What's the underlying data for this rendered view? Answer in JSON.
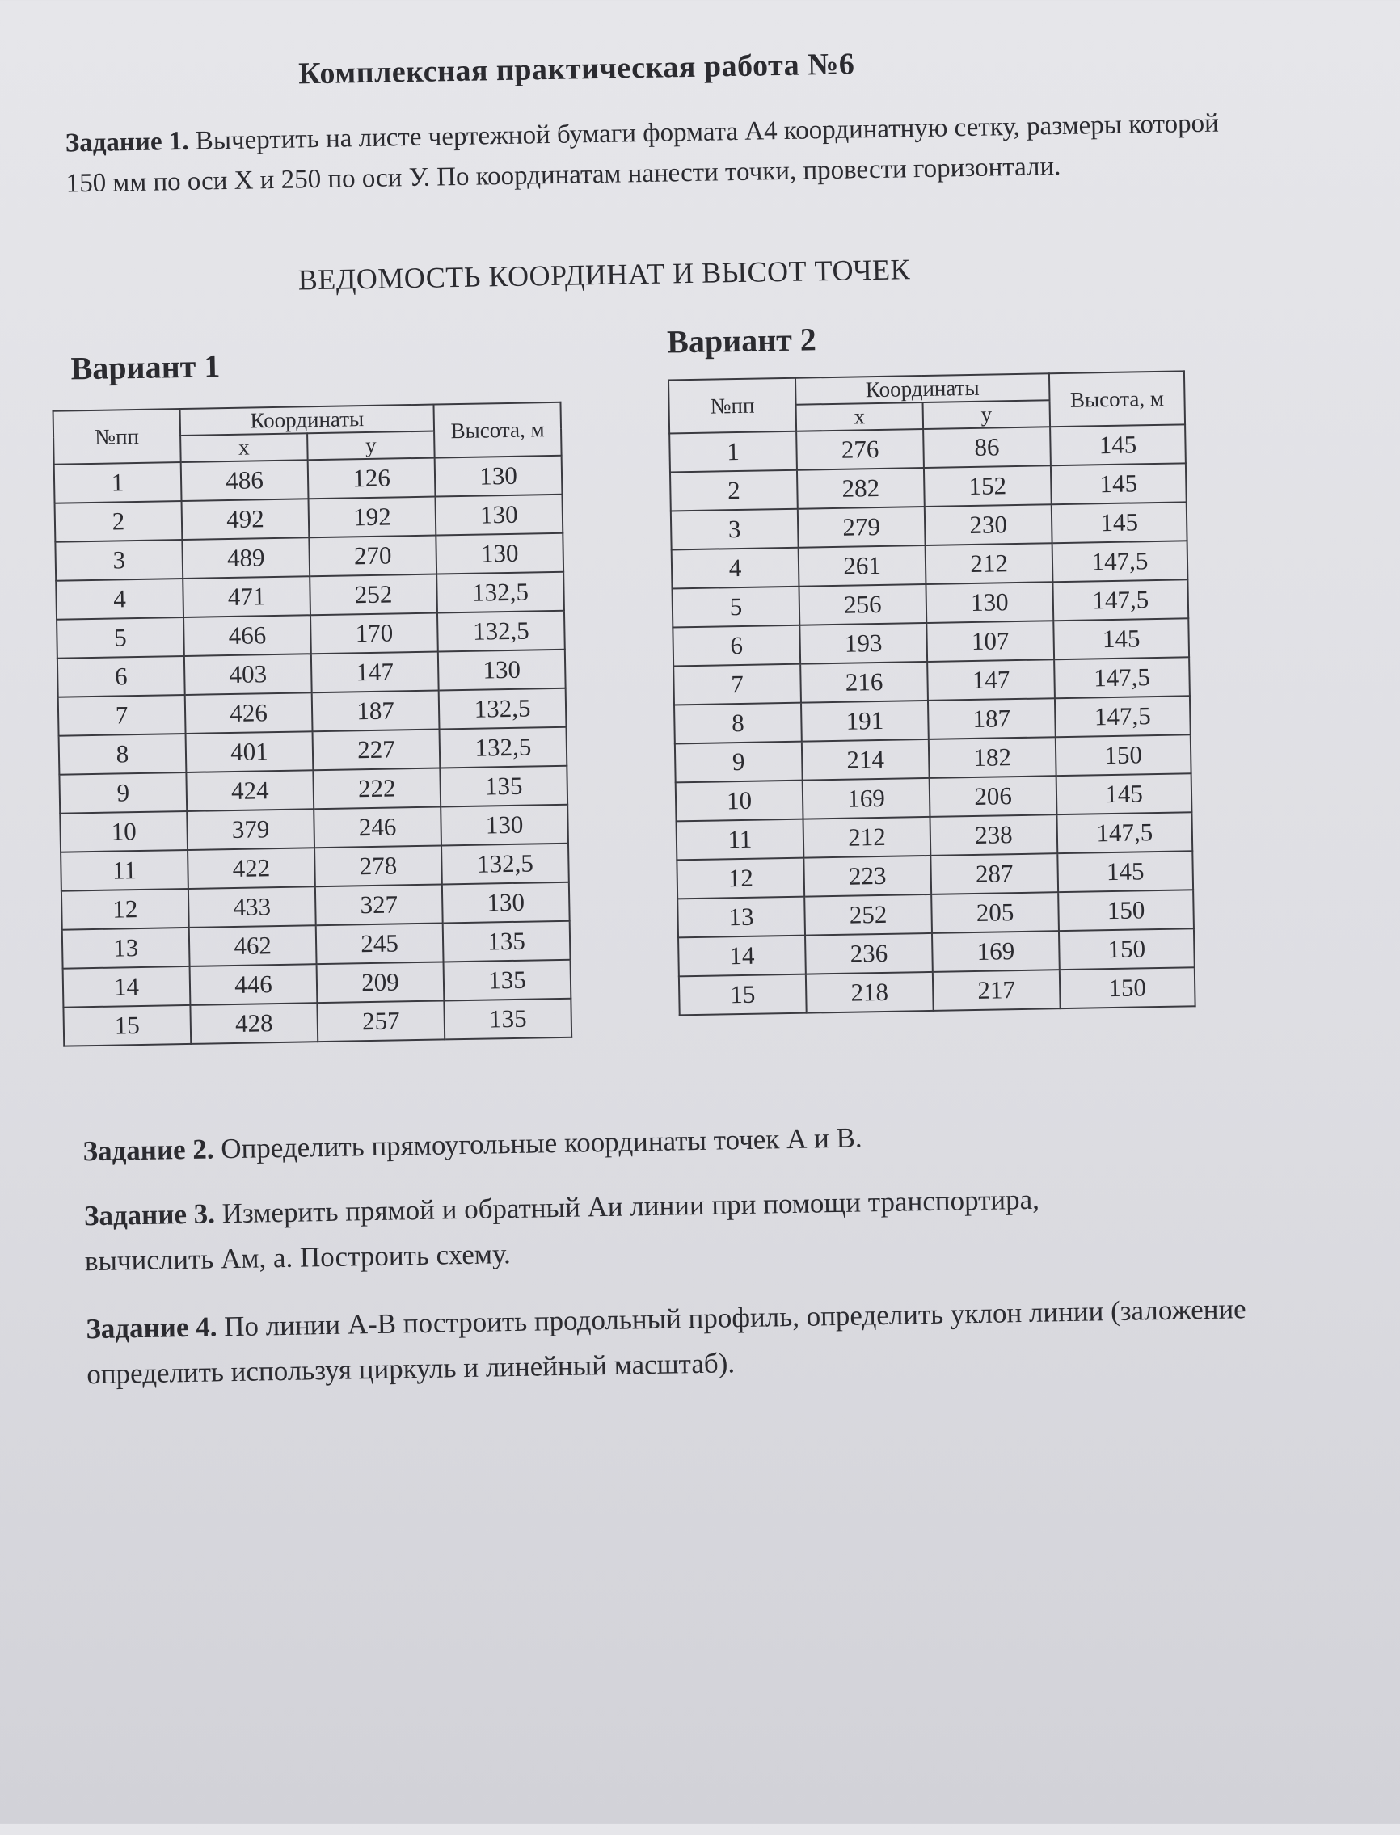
{
  "title": "Комплексная практическая работа №6",
  "task1": {
    "label": "Задание 1.",
    "text": "Вычертить на листе чертежной бумаги формата А4 координатную сетку, размеры которой 150 мм по оси X и 250 по оси У. По координатам нанести точки, провести горизонтали."
  },
  "heading": "ВЕДОМОСТЬ КООРДИНАТ И ВЫСОТ ТОЧЕК",
  "headers": {
    "num": "№пп",
    "coords": "Координаты",
    "x": "x",
    "y": "y",
    "height": "Высота, м"
  },
  "variant1": {
    "title": "Вариант 1",
    "rows": [
      [
        "1",
        "486",
        "126",
        "130"
      ],
      [
        "2",
        "492",
        "192",
        "130"
      ],
      [
        "3",
        "489",
        "270",
        "130"
      ],
      [
        "4",
        "471",
        "252",
        "132,5"
      ],
      [
        "5",
        "466",
        "170",
        "132,5"
      ],
      [
        "6",
        "403",
        "147",
        "130"
      ],
      [
        "7",
        "426",
        "187",
        "132,5"
      ],
      [
        "8",
        "401",
        "227",
        "132,5"
      ],
      [
        "9",
        "424",
        "222",
        "135"
      ],
      [
        "10",
        "379",
        "246",
        "130"
      ],
      [
        "11",
        "422",
        "278",
        "132,5"
      ],
      [
        "12",
        "433",
        "327",
        "130"
      ],
      [
        "13",
        "462",
        "245",
        "135"
      ],
      [
        "14",
        "446",
        "209",
        "135"
      ],
      [
        "15",
        "428",
        "257",
        "135"
      ]
    ]
  },
  "variant2": {
    "title": "Вариант 2",
    "rows": [
      [
        "1",
        "276",
        "86",
        "145"
      ],
      [
        "2",
        "282",
        "152",
        "145"
      ],
      [
        "3",
        "279",
        "230",
        "145"
      ],
      [
        "4",
        "261",
        "212",
        "147,5"
      ],
      [
        "5",
        "256",
        "130",
        "147,5"
      ],
      [
        "6",
        "193",
        "107",
        "145"
      ],
      [
        "7",
        "216",
        "147",
        "147,5"
      ],
      [
        "8",
        "191",
        "187",
        "147,5"
      ],
      [
        "9",
        "214",
        "182",
        "150"
      ],
      [
        "10",
        "169",
        "206",
        "145"
      ],
      [
        "11",
        "212",
        "238",
        "147,5"
      ],
      [
        "12",
        "223",
        "287",
        "145"
      ],
      [
        "13",
        "252",
        "205",
        "150"
      ],
      [
        "14",
        "236",
        "169",
        "150"
      ],
      [
        "15",
        "218",
        "217",
        "150"
      ]
    ]
  },
  "task2": {
    "label": "Задание 2.",
    "text": "Определить прямоугольные координаты точек А и В."
  },
  "task3": {
    "label": "Задание 3.",
    "text": "Измерить прямой и обратный Аи линии при помощи транспортира, вычислить Ам, а. Построить схему."
  },
  "task4": {
    "label": "Задание 4.",
    "text": "По линии А-В построить продольный профиль, определить уклон линии (заложение определить используя циркуль и линейный масштаб)."
  }
}
